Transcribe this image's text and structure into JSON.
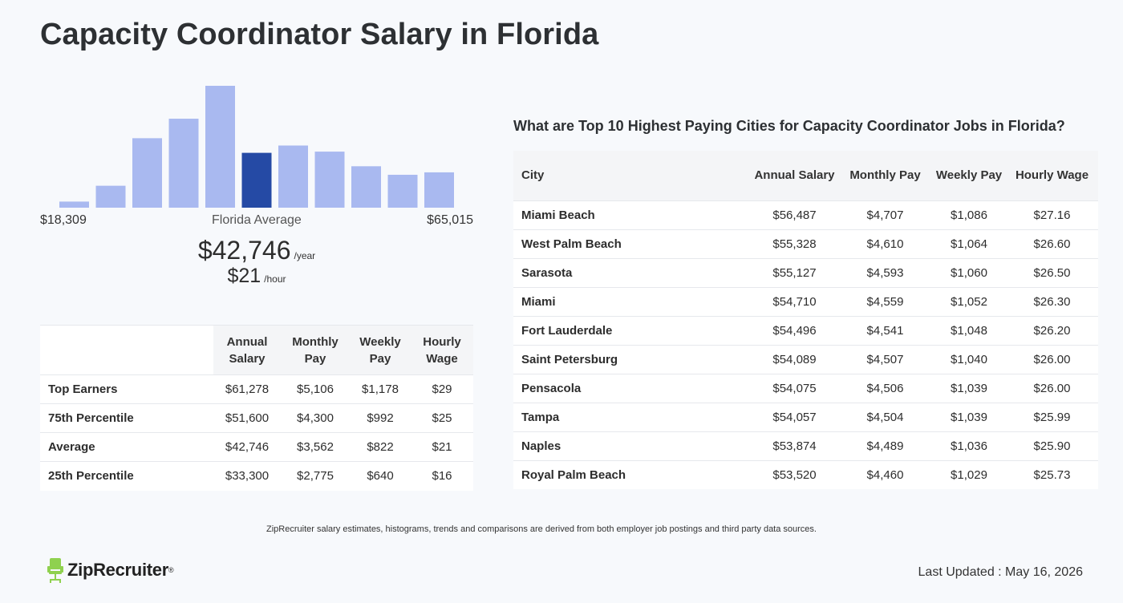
{
  "page": {
    "title": "Capacity Coordinator Salary in Florida"
  },
  "chart_data": {
    "type": "bar",
    "categories": [
      "1",
      "2",
      "3",
      "4",
      "5",
      "6",
      "7",
      "8",
      "9",
      "10",
      "11"
    ],
    "values": [
      0.05,
      0.18,
      0.57,
      0.73,
      1.0,
      0.45,
      0.51,
      0.46,
      0.34,
      0.27,
      0.29
    ],
    "highlight_index": 5,
    "colors": {
      "bar": "#a9b9f0",
      "highlight": "#254aa5"
    },
    "range_min": "$18,309",
    "range_label": "Florida Average",
    "range_max": "$65,015"
  },
  "average": {
    "annual": "$42,746",
    "annual_unit": "/year",
    "hourly": "$21",
    "hourly_unit": "/hour"
  },
  "percentile_table": {
    "headers": [
      "",
      "Annual Salary",
      "Monthly Pay",
      "Weekly Pay",
      "Hourly Wage"
    ],
    "rows": [
      [
        "Top Earners",
        "$61,278",
        "$5,106",
        "$1,178",
        "$29"
      ],
      [
        "75th Percentile",
        "$51,600",
        "$4,300",
        "$992",
        "$25"
      ],
      [
        "Average",
        "$42,746",
        "$3,562",
        "$822",
        "$21"
      ],
      [
        "25th Percentile",
        "$33,300",
        "$2,775",
        "$640",
        "$16"
      ]
    ]
  },
  "cities": {
    "title": "What are Top 10 Highest Paying Cities for Capacity Coordinator Jobs in Florida?",
    "headers": [
      "City",
      "Annual Salary",
      "Monthly Pay",
      "Weekly Pay",
      "Hourly Wage"
    ],
    "rows": [
      [
        "Miami Beach",
        "$56,487",
        "$4,707",
        "$1,086",
        "$27.16"
      ],
      [
        "West Palm Beach",
        "$55,328",
        "$4,610",
        "$1,064",
        "$26.60"
      ],
      [
        "Sarasota",
        "$55,127",
        "$4,593",
        "$1,060",
        "$26.50"
      ],
      [
        "Miami",
        "$54,710",
        "$4,559",
        "$1,052",
        "$26.30"
      ],
      [
        "Fort Lauderdale",
        "$54,496",
        "$4,541",
        "$1,048",
        "$26.20"
      ],
      [
        "Saint Petersburg",
        "$54,089",
        "$4,507",
        "$1,040",
        "$26.00"
      ],
      [
        "Pensacola",
        "$54,075",
        "$4,506",
        "$1,039",
        "$26.00"
      ],
      [
        "Tampa",
        "$54,057",
        "$4,504",
        "$1,039",
        "$25.99"
      ],
      [
        "Naples",
        "$53,874",
        "$4,489",
        "$1,036",
        "$25.90"
      ],
      [
        "Royal Palm Beach",
        "$53,520",
        "$4,460",
        "$1,029",
        "$25.73"
      ]
    ]
  },
  "footer": {
    "note": "ZipRecruiter salary estimates, histograms, trends and comparisons are derived from both employer job postings and third party data sources.",
    "logo_text": "ZipRecruiter",
    "logo_mark": "®",
    "logo_icon": "chair-icon",
    "updated": "Last Updated : May 16, 2026"
  }
}
